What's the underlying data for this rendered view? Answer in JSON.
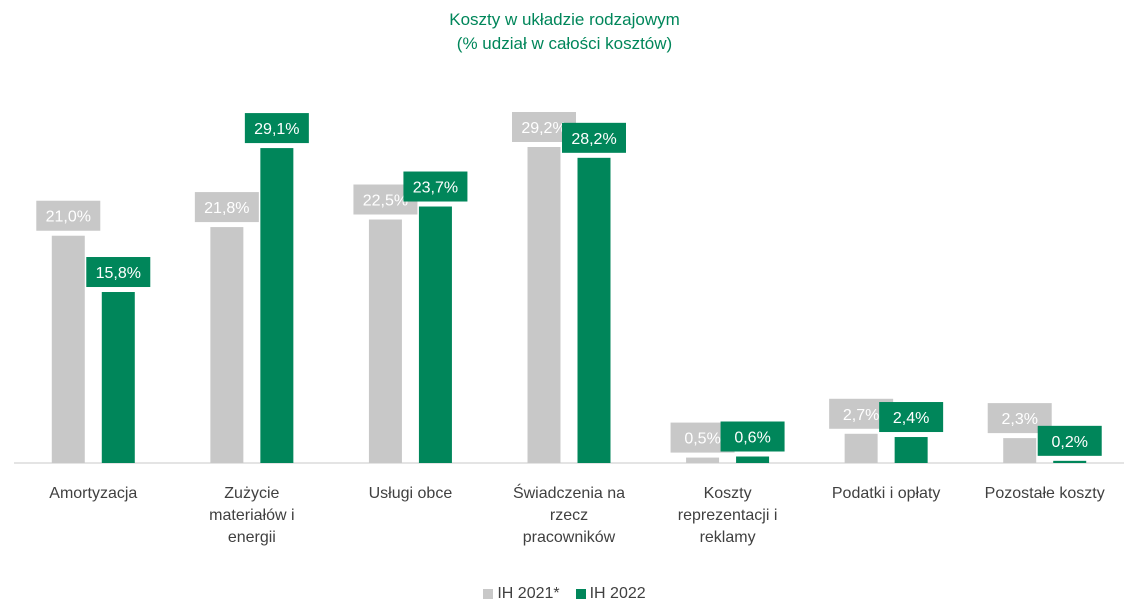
{
  "colors": {
    "series_2021": "#c8c8c8",
    "series_2022": "#00865a",
    "title": "#00865a",
    "text": "#404040",
    "axis": "#c8c8c8"
  },
  "chart_data": {
    "type": "bar",
    "title": "Koszty w układzie rodzajowym",
    "subtitle": "(% udział w całości kosztów)",
    "categories": [
      "Amortyzacja",
      "Zużycie materiałów i energii",
      "Usługi obce",
      "Świadczenia na rzecz pracowników",
      "Koszty reprezentacji i reklamy",
      "Podatki i opłaty",
      "Pozostałe koszty"
    ],
    "category_lines": [
      [
        "Amortyzacja"
      ],
      [
        "Zużycie",
        "materiałów i",
        "energii"
      ],
      [
        "Usługi obce"
      ],
      [
        "Świadczenia na",
        "rzecz",
        "pracowników"
      ],
      [
        "Koszty",
        "reprezentacji i",
        "reklamy"
      ],
      [
        "Podatki i opłaty"
      ],
      [
        "Pozostałe koszty"
      ]
    ],
    "series": [
      {
        "name": "IH 2021*",
        "values": [
          21.0,
          21.8,
          22.5,
          29.2,
          0.5,
          2.7,
          2.3
        ],
        "labels": [
          "21,0%",
          "21,8%",
          "22,5%",
          "29,2%",
          "0,5%",
          "2,7%",
          "2,3%"
        ]
      },
      {
        "name": "IH 2022",
        "values": [
          15.8,
          29.1,
          23.7,
          28.2,
          0.6,
          2.4,
          0.2
        ],
        "labels": [
          "15,8%",
          "29,1%",
          "23,7%",
          "28,2%",
          "0,6%",
          "2,4%",
          "0,2%"
        ]
      }
    ],
    "ylim": [
      0,
      29.2
    ],
    "grid": false,
    "legend_position": "bottom"
  }
}
